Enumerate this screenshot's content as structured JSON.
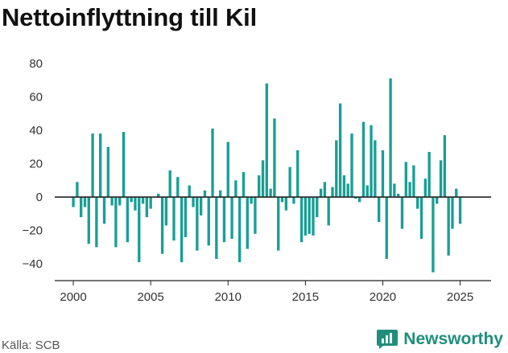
{
  "title": "Nettoinflyttning till Kil",
  "source": "Källa: SCB",
  "brand": {
    "name": "Newsworthy",
    "icon": "newsworthy-logo-icon",
    "color": "#1f8f7b"
  },
  "chart_data": {
    "type": "bar",
    "title": "Nettoinflyttning till Kil",
    "xlabel": "",
    "ylabel": "",
    "ylim": [
      -50,
      90
    ],
    "xlim": [
      1998.8,
      2027.0
    ],
    "bar_color": "#1a9e95",
    "grid": false,
    "yticks": [
      -40,
      -20,
      0,
      20,
      40,
      60,
      80
    ],
    "ytick_labels": [
      "−40",
      "−20",
      "0",
      "20",
      "40",
      "60",
      "80"
    ],
    "xticks": [
      2000,
      2005,
      2010,
      2015,
      2020,
      2025
    ],
    "xtick_labels": [
      "2000",
      "2005",
      "2010",
      "2015",
      "2020",
      "2025"
    ],
    "series": [
      {
        "frequency": "quarterly",
        "start": "2000-Q1",
        "values": [
          -6,
          9,
          -12,
          -6,
          -28,
          38,
          -30,
          38,
          -16,
          30,
          -5,
          -30,
          -5,
          39,
          -27,
          -3,
          -8,
          -39,
          -4,
          -12,
          -7,
          0,
          2,
          -34,
          -17,
          16,
          -26,
          12,
          -39,
          -24,
          7,
          -6,
          -32,
          -11,
          4,
          -29,
          41,
          -37,
          4,
          -27,
          33,
          -25,
          10,
          -39,
          15,
          -31,
          -4,
          -22,
          13,
          22,
          68,
          5,
          47,
          -32,
          -3,
          -8,
          18,
          -4,
          28,
          -27,
          -23,
          -22,
          -23,
          -12,
          5,
          9,
          -17,
          6,
          34,
          56,
          13,
          8,
          38,
          -1,
          -3,
          45,
          7,
          43,
          34,
          -15,
          28,
          -37,
          71,
          8,
          2,
          -19,
          21,
          9,
          19,
          -7,
          -25,
          11,
          27,
          -45,
          -4,
          22,
          37,
          -35,
          -19,
          5,
          -16
        ]
      }
    ]
  }
}
